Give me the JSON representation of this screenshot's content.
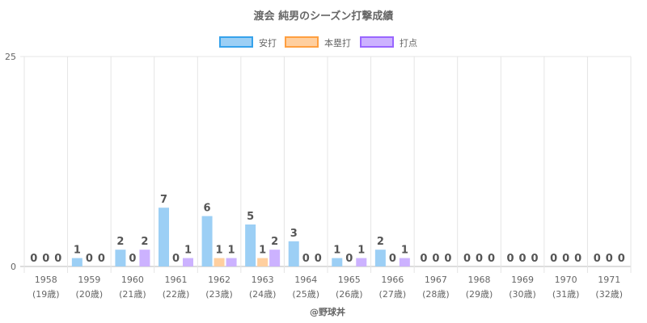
{
  "chart_data": {
    "type": "bar",
    "title": "渡会 純男のシーズン打撃成績",
    "categories": [
      "1958",
      "1959",
      "1960",
      "1961",
      "1962",
      "1963",
      "1964",
      "1965",
      "1966",
      "1967",
      "1968",
      "1969",
      "1970",
      "1971"
    ],
    "sublabels": [
      "(19歳)",
      "(20歳)",
      "(21歳)",
      "(22歳)",
      "(23歳)",
      "(24歳)",
      "(25歳)",
      "(26歳)",
      "(27歳)",
      "(28歳)",
      "(29歳)",
      "(30歳)",
      "(31歳)",
      "(32歳)"
    ],
    "series": [
      {
        "name": "安打",
        "values": [
          0,
          1,
          2,
          7,
          6,
          5,
          3,
          1,
          2,
          0,
          0,
          0,
          0,
          0
        ],
        "fill": "#9ccff5",
        "stroke": "#36a2eb"
      },
      {
        "name": "本塁打",
        "values": [
          0,
          0,
          0,
          0,
          1,
          1,
          0,
          0,
          0,
          0,
          0,
          0,
          0,
          0
        ],
        "fill": "#ffcf9f",
        "stroke": "#ff9f40"
      },
      {
        "name": "打点",
        "values": [
          0,
          0,
          2,
          1,
          1,
          2,
          0,
          1,
          1,
          0,
          0,
          0,
          0,
          0
        ],
        "fill": "#ccb2ff",
        "stroke": "#9966ff"
      }
    ],
    "ylim": [
      0,
      25
    ],
    "yticks": [
      0,
      25
    ],
    "grid": true,
    "legend": "top",
    "watermark": "@野球丼"
  }
}
